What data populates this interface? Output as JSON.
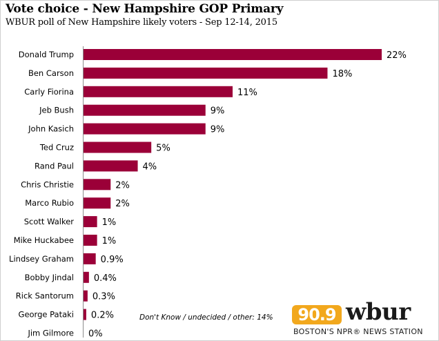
{
  "chart_data": {
    "type": "bar",
    "orientation": "horizontal",
    "title": "Vote choice - New Hampshire GOP Primary",
    "subtitle": "WBUR poll of New Hampshire likely voters - Sep 12-14, 2015",
    "categories": [
      "Donald Trump",
      "Ben Carson",
      "Carly Fiorina",
      "Jeb Bush",
      "John Kasich",
      "Ted Cruz",
      "Rand Paul",
      "Chris Christie",
      "Marco Rubio",
      "Scott Walker",
      "Mike Huckabee",
      "Lindsey Graham",
      "Bobby Jindal",
      "Rick Santorum",
      "George Pataki",
      "Jim Gilmore"
    ],
    "values": [
      22,
      18,
      11,
      9,
      9,
      5,
      4,
      2,
      2,
      1,
      1,
      0.9,
      0.4,
      0.3,
      0.2,
      0
    ],
    "data_labels": [
      "22%",
      "18%",
      "11%",
      "9%",
      "9%",
      "5%",
      "4%",
      "2%",
      "2%",
      "1%",
      "1%",
      "0.9%",
      "0.4%",
      "0.3%",
      "0.2%",
      "0%"
    ],
    "xlim": [
      0,
      22
    ],
    "grid": false,
    "bar_color": "#9b0038",
    "annotation": "Don't Know / undecided / other: 14%"
  },
  "logo": {
    "frequency": "90.9",
    "name": "wbur",
    "tagline": "BOSTON'S NPR® NEWS STATION",
    "badge_color": "#f2a81d"
  }
}
